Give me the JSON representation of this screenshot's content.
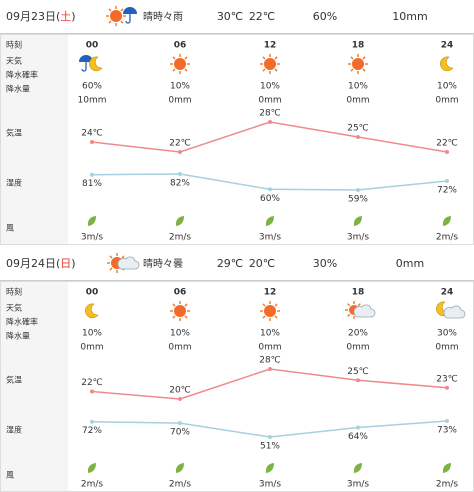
{
  "row_labels": [
    "時刻",
    "天気",
    "降水確率",
    "降水量",
    "気温",
    "湿度",
    "風"
  ],
  "days": [
    {
      "date_parts": [
        "09月23日(",
        "土",
        ")"
      ],
      "summary": "晴時々雨",
      "high": "30℃",
      "low": "22℃",
      "precip_prob": "60%",
      "precip_amount": "10mm",
      "hours": [
        "00",
        "06",
        "12",
        "18",
        "24"
      ],
      "probs": [
        "60%",
        "10%",
        "10%",
        "10%",
        "10%"
      ],
      "amounts": [
        "10mm",
        "0mm",
        "0mm",
        "0mm",
        "0mm"
      ],
      "temps": [
        24,
        22,
        28,
        25,
        22
      ],
      "temp_labels": [
        "24℃",
        "22℃",
        "28℃",
        "25℃",
        "22℃"
      ],
      "humidity": [
        81,
        82,
        60,
        59,
        72
      ],
      "humidity_labels": [
        "81%",
        "82%",
        "60%",
        "59%",
        "72%"
      ],
      "wind": [
        "3m/s",
        "2m/s",
        "3m/s",
        "3m/s",
        "2m/s"
      ]
    },
    {
      "date_parts": [
        "09月24日(",
        "日",
        ")"
      ],
      "summary": "晴時々曇",
      "high": "29℃",
      "low": "20℃",
      "precip_prob": "30%",
      "precip_amount": "0mm",
      "hours": [
        "00",
        "06",
        "12",
        "18",
        "24"
      ],
      "probs": [
        "10%",
        "10%",
        "10%",
        "20%",
        "30%"
      ],
      "amounts": [
        "0mm",
        "0mm",
        "0mm",
        "0mm",
        "0mm"
      ],
      "temps": [
        22,
        20,
        28,
        25,
        23
      ],
      "temp_labels": [
        "22℃",
        "20℃",
        "28℃",
        "25℃",
        "23℃"
      ],
      "humidity": [
        72,
        70,
        51,
        64,
        73
      ],
      "humidity_labels": [
        "72%",
        "70%",
        "51%",
        "64%",
        "73%"
      ],
      "wind": [
        "2m/s",
        "2m/s",
        "3m/s",
        "3m/s",
        "2m/s"
      ]
    }
  ]
}
